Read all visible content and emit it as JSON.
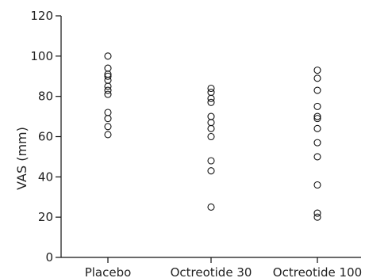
{
  "chart_data": {
    "type": "scatter",
    "ylabel": "VAS (mm)",
    "ylim": [
      0,
      120
    ],
    "yticks": [
      0,
      20,
      40,
      60,
      80,
      100,
      120
    ],
    "categories": [
      "Placebo",
      "Octreotide 30",
      "Octreotide 100"
    ],
    "series": [
      {
        "category": "Placebo",
        "values": [
          100,
          94,
          91,
          90,
          88,
          85,
          83,
          81,
          72,
          69,
          65,
          61
        ]
      },
      {
        "category": "Octreotide 30",
        "values": [
          84,
          82,
          79,
          77,
          70,
          67,
          64,
          60,
          48,
          43,
          25
        ]
      },
      {
        "category": "Octreotide 100",
        "values": [
          93,
          89,
          83,
          75,
          70,
          69,
          64,
          57,
          50,
          36,
          22,
          20
        ]
      }
    ],
    "marker": {
      "shape": "open-circle",
      "color": "#111111"
    },
    "grid": false,
    "legend": "none"
  }
}
